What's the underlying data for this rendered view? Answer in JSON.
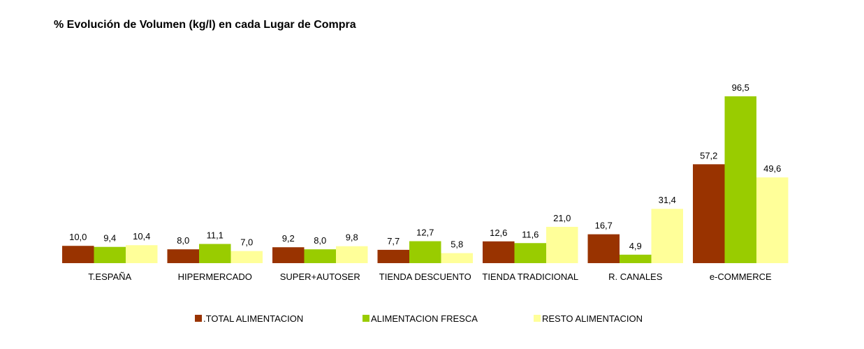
{
  "title": "% Evolución de Volumen (kg/l) en cada Lugar de Compra",
  "chart_data": {
    "type": "bar",
    "title": "% Evolución de Volumen (kg/l) en cada Lugar de Compra",
    "categories": [
      "T.ESPAÑA",
      "HIPERMERCADO",
      "SUPER+AUTOSER",
      "TIENDA DESCUENTO",
      "TIENDA TRADICIONAL",
      "R. CANALES",
      "e-COMMERCE"
    ],
    "series": [
      {
        "name": ".TOTAL ALIMENTACION",
        "color": "#993300",
        "values": [
          10.0,
          8.0,
          9.2,
          7.7,
          12.6,
          16.7,
          57.2
        ],
        "labels": [
          "10,0",
          "8,0",
          "9,2",
          "7,7",
          "12,6",
          "16,7",
          "57,2"
        ]
      },
      {
        "name": "ALIMENTACION FRESCA",
        "color": "#99cc00",
        "values": [
          9.4,
          11.1,
          8.0,
          12.7,
          11.6,
          4.9,
          96.5
        ],
        "labels": [
          "9,4",
          "11,1",
          "8,0",
          "12,7",
          "11,6",
          "4,9",
          "96,5"
        ]
      },
      {
        "name": "RESTO ALIMENTACION",
        "color": "#ffff99",
        "values": [
          10.4,
          7.0,
          9.8,
          5.8,
          21.0,
          31.4,
          49.6
        ],
        "labels": [
          "10,4",
          "7,0",
          "9,8",
          "5,8",
          "21,0",
          "31,4",
          "49,6"
        ]
      }
    ],
    "ylim": [
      0,
      96.5
    ],
    "grid": false,
    "legend": "bottom"
  }
}
